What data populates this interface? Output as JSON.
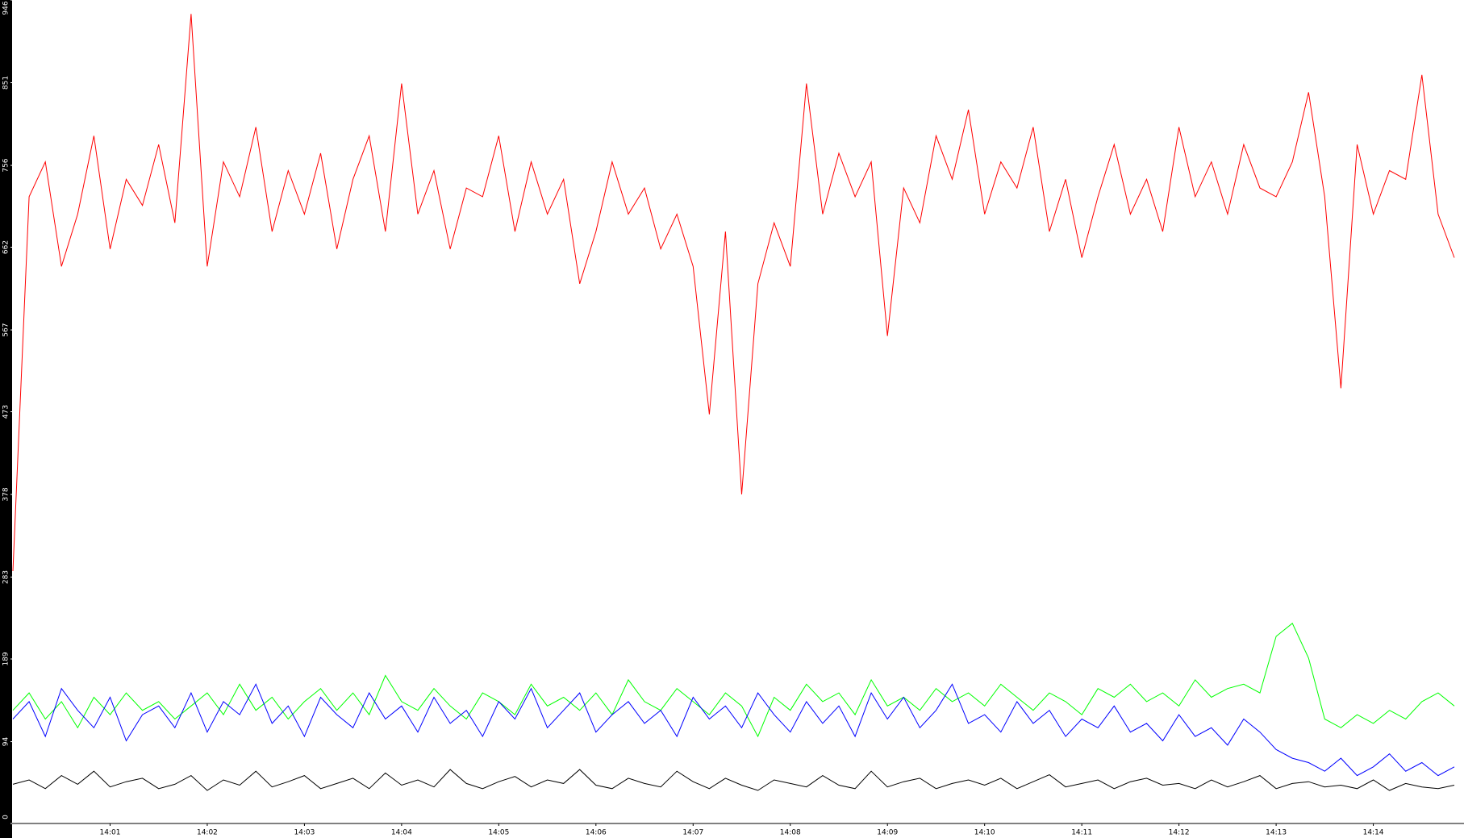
{
  "chart_data": {
    "type": "line",
    "categories": [
      null,
      null,
      null,
      null,
      null,
      null,
      "14:01",
      null,
      null,
      null,
      null,
      null,
      "14:02",
      null,
      null,
      null,
      null,
      null,
      "14:03",
      null,
      null,
      null,
      null,
      null,
      "14:04",
      null,
      null,
      null,
      null,
      null,
      "14:05",
      null,
      null,
      null,
      null,
      null,
      "14:06",
      null,
      null,
      null,
      null,
      null,
      "14:07",
      null,
      null,
      null,
      null,
      null,
      "14:08",
      null,
      null,
      null,
      null,
      null,
      "14:09",
      null,
      null,
      null,
      null,
      null,
      "14:10",
      null,
      null,
      null,
      null,
      null,
      "14:11",
      null,
      null,
      null,
      null,
      null,
      "14:12",
      null,
      null,
      null,
      null,
      null,
      "14:13",
      null,
      null,
      null,
      null,
      null,
      "14:14",
      null,
      null,
      null,
      null,
      null
    ],
    "ylim": [
      0,
      946
    ],
    "yticks": [
      0,
      94,
      189,
      283,
      378,
      473,
      567,
      662,
      756,
      851,
      946
    ],
    "series": [
      {
        "color": "#ff0000",
        "values": [
          290,
          720,
          760,
          640,
          700,
          790,
          660,
          740,
          710,
          780,
          690,
          930,
          640,
          760,
          720,
          800,
          680,
          750,
          700,
          770,
          660,
          740,
          790,
          680,
          850,
          700,
          750,
          660,
          730,
          720,
          790,
          680,
          760,
          700,
          740,
          620,
          680,
          760,
          700,
          730,
          660,
          700,
          640,
          470,
          680,
          378,
          620,
          690,
          640,
          850,
          700,
          770,
          720,
          760,
          560,
          730,
          690,
          790,
          740,
          820,
          700,
          760,
          730,
          800,
          680,
          740,
          650,
          720,
          780,
          700,
          740,
          680,
          800,
          720,
          760,
          700,
          780,
          730,
          720,
          760,
          840,
          720,
          500,
          780,
          700,
          750,
          740,
          860,
          700,
          650
        ]
      },
      {
        "color": "#00ff00",
        "values": [
          130,
          150,
          120,
          140,
          110,
          145,
          125,
          150,
          130,
          140,
          120,
          135,
          150,
          125,
          160,
          130,
          145,
          120,
          140,
          155,
          130,
          150,
          125,
          170,
          140,
          130,
          155,
          135,
          120,
          150,
          140,
          125,
          160,
          135,
          145,
          130,
          150,
          125,
          165,
          140,
          130,
          155,
          140,
          125,
          150,
          135,
          100,
          145,
          130,
          160,
          140,
          150,
          125,
          165,
          135,
          145,
          130,
          155,
          140,
          150,
          135,
          160,
          145,
          130,
          150,
          140,
          125,
          155,
          145,
          160,
          140,
          150,
          135,
          165,
          145,
          155,
          160,
          150,
          215,
          230,
          190,
          120,
          110,
          125,
          115,
          130,
          120,
          140,
          150,
          135
        ]
      },
      {
        "color": "#0000ff",
        "values": [
          120,
          140,
          100,
          155,
          130,
          110,
          145,
          95,
          125,
          135,
          110,
          150,
          105,
          140,
          125,
          160,
          115,
          135,
          100,
          145,
          125,
          110,
          150,
          120,
          135,
          105,
          145,
          115,
          130,
          100,
          140,
          120,
          155,
          110,
          130,
          150,
          105,
          125,
          140,
          115,
          130,
          100,
          145,
          120,
          135,
          110,
          150,
          125,
          105,
          140,
          115,
          135,
          100,
          150,
          120,
          145,
          110,
          130,
          160,
          115,
          125,
          105,
          140,
          115,
          130,
          100,
          120,
          110,
          135,
          105,
          115,
          95,
          125,
          100,
          110,
          90,
          120,
          105,
          85,
          75,
          70,
          60,
          75,
          55,
          65,
          80,
          60,
          70,
          55,
          65
        ]
      },
      {
        "color": "#000000",
        "values": [
          45,
          50,
          40,
          55,
          45,
          60,
          42,
          48,
          52,
          40,
          45,
          55,
          38,
          50,
          44,
          60,
          42,
          48,
          55,
          40,
          46,
          52,
          40,
          58,
          44,
          50,
          42,
          62,
          46,
          40,
          48,
          54,
          42,
          50,
          46,
          62,
          44,
          40,
          52,
          46,
          42,
          60,
          48,
          40,
          52,
          44,
          38,
          50,
          46,
          42,
          55,
          44,
          40,
          60,
          42,
          48,
          52,
          40,
          46,
          50,
          44,
          52,
          40,
          48,
          56,
          42,
          46,
          50,
          40,
          48,
          52,
          44,
          46,
          40,
          50,
          42,
          48,
          55,
          40,
          46,
          48,
          42,
          44,
          40,
          50,
          38,
          46,
          42,
          40,
          44
        ]
      }
    ]
  }
}
